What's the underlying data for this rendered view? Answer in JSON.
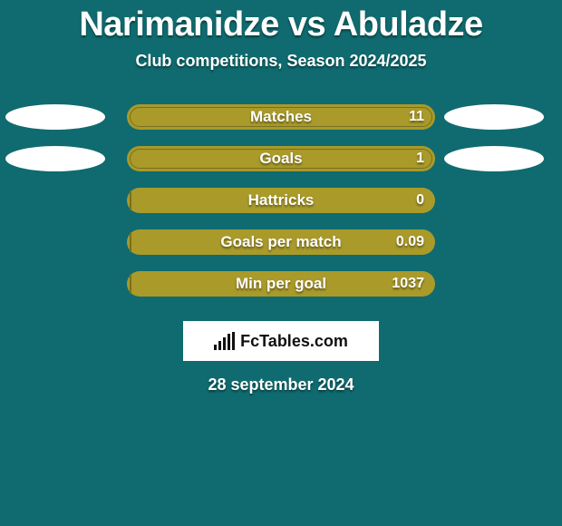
{
  "colors": {
    "page_bg": "#0f6b6f",
    "text": "#ffffff",
    "bar_outer": "#a99a2a",
    "bar_inner_fill": "#a99a2a",
    "bar_inner_border": "#7a6f1f",
    "avatar_fill": "#ffffff",
    "logo_bg": "#ffffff",
    "logo_fg": "#111111"
  },
  "typography": {
    "title_fontsize": 38,
    "subtitle_fontsize": 18,
    "stat_label_fontsize": 17,
    "stat_value_fontsize": 16,
    "date_fontsize": 18,
    "logo_fontsize": 18
  },
  "layout": {
    "bar_outer_width": 340,
    "bar_outer_height": 28,
    "bar_inner_height": 22,
    "bar_radius": 16,
    "avatar_w": 110,
    "avatar_h": 28
  },
  "title": "Narimanidze vs Abuladze",
  "subtitle": "Club competitions, Season 2024/2025",
  "logo_text": "FcTables.com",
  "date": "28 september 2024",
  "show_avatars_on_rows": [
    0,
    1
  ],
  "stats": [
    {
      "label": "Matches",
      "value": "11",
      "fill_ratio": 1.0
    },
    {
      "label": "Goals",
      "value": "1",
      "fill_ratio": 1.0
    },
    {
      "label": "Hattricks",
      "value": "0",
      "fill_ratio": 0.0
    },
    {
      "label": "Goals per match",
      "value": "0.09",
      "fill_ratio": 0.0
    },
    {
      "label": "Min per goal",
      "value": "1037",
      "fill_ratio": 0.0
    }
  ]
}
